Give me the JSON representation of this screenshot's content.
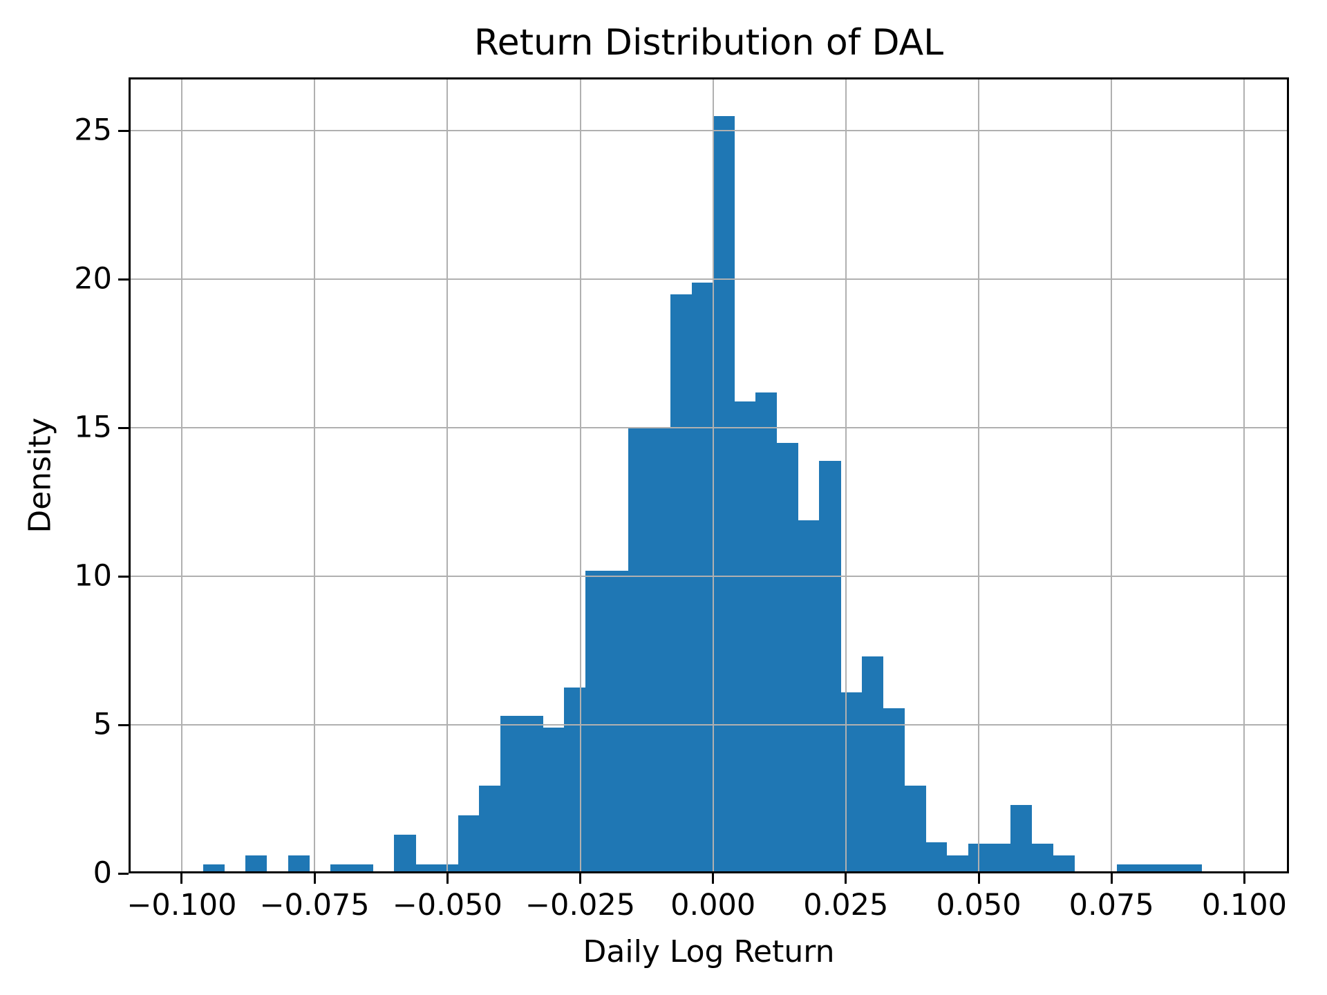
{
  "chart_data": {
    "type": "bar",
    "subtype": "histogram",
    "title": "Return Distribution of DAL",
    "xlabel": "Daily Log Return",
    "ylabel": "Density",
    "bar_color": "#1f77b4",
    "grid_color": "#b0b0b0",
    "axis_color": "#000000",
    "background_color": "#ffffff",
    "grid_on": true,
    "grid_above_bars": true,
    "bin_width": 0.004,
    "xlim": [
      -0.11,
      0.1084
    ],
    "ylim": [
      0,
      26.8
    ],
    "x_ticks": [
      -0.1,
      -0.075,
      -0.05,
      -0.025,
      0.0,
      0.025,
      0.05,
      0.075,
      0.1
    ],
    "x_tick_labels": [
      "−0.100",
      "−0.075",
      "−0.050",
      "−0.025",
      "0.000",
      "0.025",
      "0.050",
      "0.075",
      "0.100"
    ],
    "y_ticks": [
      0,
      5,
      10,
      15,
      20,
      25
    ],
    "y_tick_labels": [
      "0",
      "5",
      "10",
      "15",
      "20",
      "25"
    ],
    "bins_left_edge": [
      -0.096,
      -0.092,
      -0.088,
      -0.084,
      -0.08,
      -0.076,
      -0.072,
      -0.068,
      -0.064,
      -0.06,
      -0.056,
      -0.052,
      -0.048,
      -0.044,
      -0.04,
      -0.036,
      -0.032,
      -0.028,
      -0.024,
      -0.02,
      -0.016,
      -0.012,
      -0.008,
      -0.004,
      0.0,
      0.004,
      0.008,
      0.012,
      0.016,
      0.02,
      0.024,
      0.028,
      0.032,
      0.036,
      0.04,
      0.044,
      0.048,
      0.052,
      0.056,
      0.06,
      0.064,
      0.068,
      0.072,
      0.076,
      0.08,
      0.084,
      0.088
    ],
    "densities": [
      0.3,
      0,
      0.6,
      0,
      0.6,
      0,
      0.3,
      0.3,
      0,
      1.3,
      0.3,
      0.3,
      1.95,
      2.95,
      5.3,
      5.3,
      4.9,
      6.25,
      10.2,
      10.2,
      15.0,
      15.0,
      19.5,
      19.9,
      25.5,
      15.9,
      16.2,
      14.5,
      11.9,
      13.9,
      6.1,
      7.3,
      5.55,
      2.95,
      1.05,
      0.6,
      1.0,
      1.0,
      2.3,
      1.0,
      0.6,
      0,
      0,
      0.3,
      0.3,
      0.3,
      0.3
    ]
  }
}
